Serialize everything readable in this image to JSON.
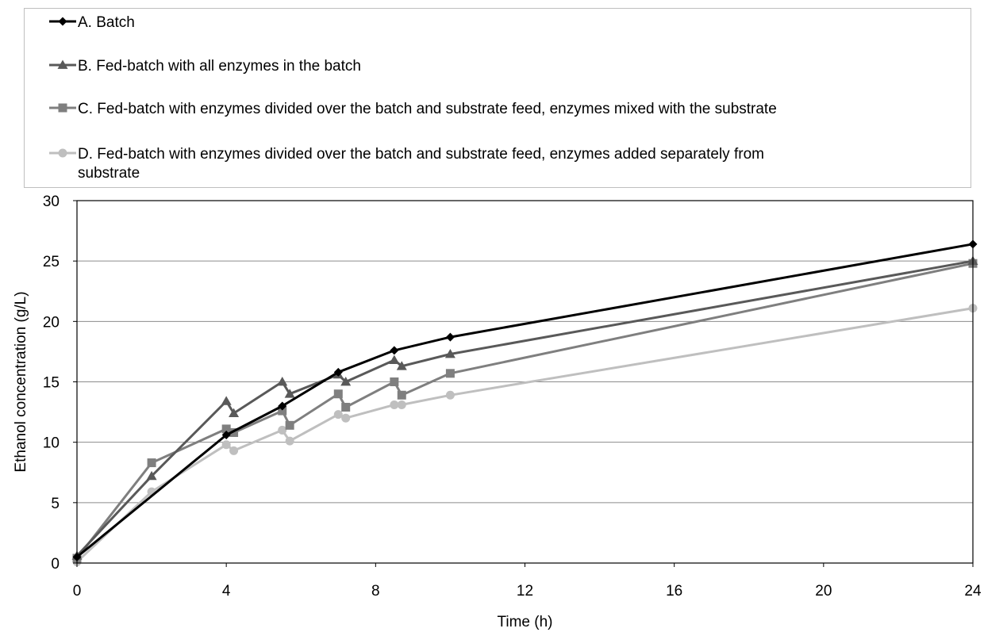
{
  "chart_data": {
    "type": "line",
    "xlabel": "Time (h)",
    "ylabel": "Ethanol concentration (g/L)",
    "xlim": [
      0,
      24
    ],
    "ylim": [
      0,
      30
    ],
    "xticks": [
      "0",
      "4",
      "8",
      "12",
      "16",
      "20",
      "24"
    ],
    "yticks": [
      "0",
      "5",
      "10",
      "15",
      "20",
      "25",
      "30"
    ],
    "grid": "horizontal",
    "legend_position": "top",
    "series": [
      {
        "name": "A. Batch",
        "marker": "diamond",
        "color": "#000000",
        "points": [
          [
            0,
            0.5
          ],
          [
            4,
            10.6
          ],
          [
            5.5,
            13.0
          ],
          [
            7,
            15.8
          ],
          [
            8.5,
            17.6
          ],
          [
            10,
            18.7
          ],
          [
            24,
            26.4
          ]
        ]
      },
      {
        "name": "B. Fed-batch with all enzymes in the batch",
        "marker": "triangle",
        "color": "#595959",
        "points": [
          [
            0,
            0.6
          ],
          [
            2,
            7.2
          ],
          [
            4,
            13.4
          ],
          [
            4.2,
            12.4
          ],
          [
            5.5,
            15.0
          ],
          [
            5.7,
            14.0
          ],
          [
            7,
            15.6
          ],
          [
            7.2,
            15.0
          ],
          [
            8.5,
            16.8
          ],
          [
            8.7,
            16.3
          ],
          [
            10,
            17.3
          ],
          [
            24,
            25.0
          ]
        ]
      },
      {
        "name": "C. Fed-batch with enzymes divided over the batch and substrate feed, enzymes mixed with the substrate",
        "marker": "square",
        "color": "#7f7f7f",
        "points": [
          [
            0,
            0.4
          ],
          [
            2,
            8.3
          ],
          [
            4,
            11.1
          ],
          [
            4.2,
            10.8
          ],
          [
            5.5,
            12.6
          ],
          [
            5.7,
            11.4
          ],
          [
            7,
            14.0
          ],
          [
            7.2,
            12.9
          ],
          [
            8.5,
            15.0
          ],
          [
            8.7,
            13.9
          ],
          [
            10,
            15.7
          ],
          [
            24,
            24.8
          ]
        ]
      },
      {
        "name": "D. Fed-batch with enzymes divided over the batch and substrate feed, enzymes added separately from substrate",
        "marker": "circle",
        "color": "#bfbfbf",
        "points": [
          [
            0,
            0.1
          ],
          [
            2,
            5.9
          ],
          [
            4,
            9.8
          ],
          [
            4.2,
            9.3
          ],
          [
            5.5,
            11.0
          ],
          [
            5.7,
            10.1
          ],
          [
            7,
            12.3
          ],
          [
            7.2,
            12.0
          ],
          [
            8.5,
            13.1
          ],
          [
            8.7,
            13.1
          ],
          [
            10,
            13.9
          ],
          [
            24,
            21.1
          ]
        ]
      }
    ]
  }
}
